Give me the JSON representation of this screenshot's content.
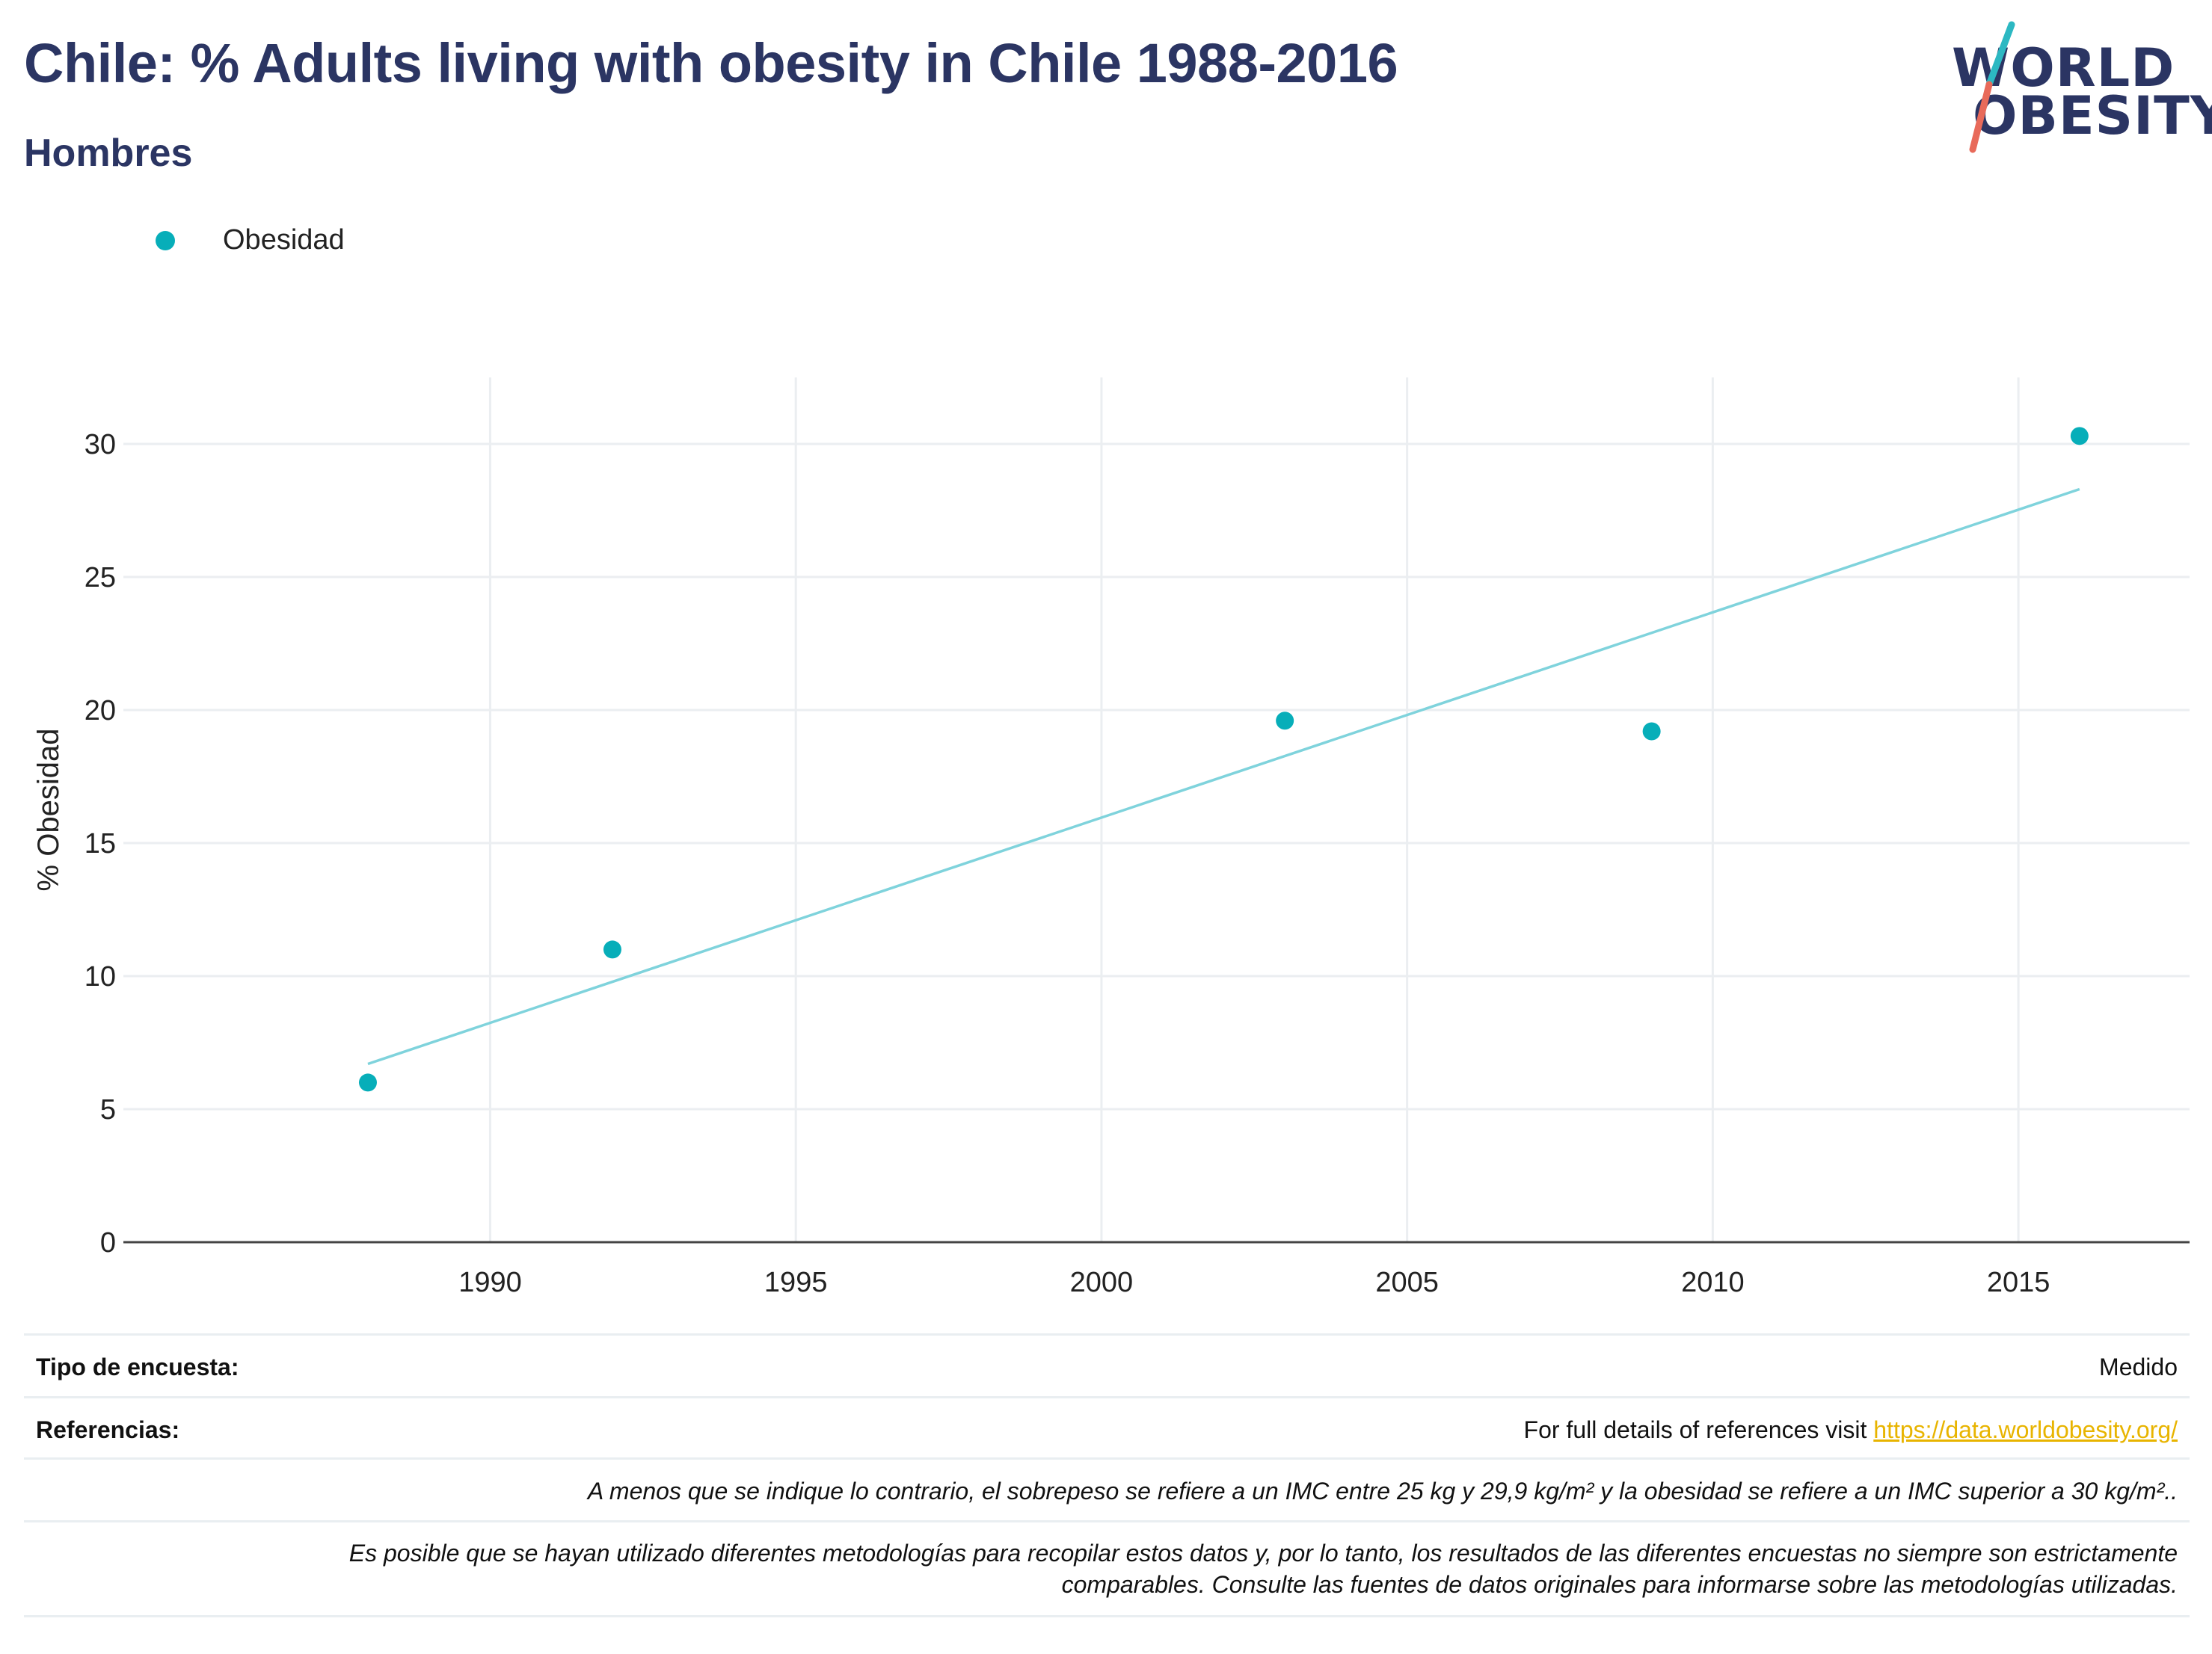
{
  "header": {
    "title": "Chile: % Adults living with obesity in Chile 1988-2016",
    "subtitle": "Hombres"
  },
  "logo": {
    "line1": "WORLD",
    "line2": "OBESITY",
    "colors": {
      "text": "#2b3563",
      "slash_top": "#2cb8c2",
      "slash_bottom": "#e86a5a"
    }
  },
  "legend": {
    "items": [
      {
        "label": "Obesidad",
        "color": "#07aeb9"
      }
    ]
  },
  "chart_data": {
    "type": "scatter",
    "title": "",
    "xlabel": "",
    "ylabel": "% Obesidad",
    "xlim": [
      1984,
      2017.8
    ],
    "ylim": [
      0,
      32.5
    ],
    "xticks": [
      1990,
      1995,
      2000,
      2005,
      2010,
      2015
    ],
    "yticks": [
      0,
      5,
      10,
      15,
      20,
      25,
      30
    ],
    "grid": true,
    "legend_position": "top-left",
    "series": [
      {
        "name": "Obesidad",
        "color": "#07aeb9",
        "x": [
          1988,
          1992,
          2003,
          2009,
          2016
        ],
        "y": [
          6.0,
          11.0,
          19.6,
          19.2,
          30.3
        ]
      }
    ],
    "trendline": {
      "color": "#7fd3dc",
      "x": [
        1988,
        2016
      ],
      "y": [
        6.7,
        28.3
      ]
    }
  },
  "info": {
    "survey_type_label": "Tipo de encuesta:",
    "survey_type_value": "Medido",
    "references_label": "Referencias:",
    "references_text": "For full details of references visit ",
    "references_link": "https://data.worldobesity.org/",
    "note1": "A menos que se indique lo contrario, el sobrepeso se refiere a un IMC entre 25 kg y 29,9 kg/m² y la obesidad se refiere a un IMC superior a 30 kg/m²..",
    "note2_line1": "Es posible que se hayan utilizado diferentes metodologías para recopilar estos datos y, por lo tanto, los resultados de las diferentes encuestas no siempre son estrictamente",
    "note2_line2": "comparables. Consulte las fuentes de datos originales para informarse sobre las metodologías utilizadas."
  }
}
